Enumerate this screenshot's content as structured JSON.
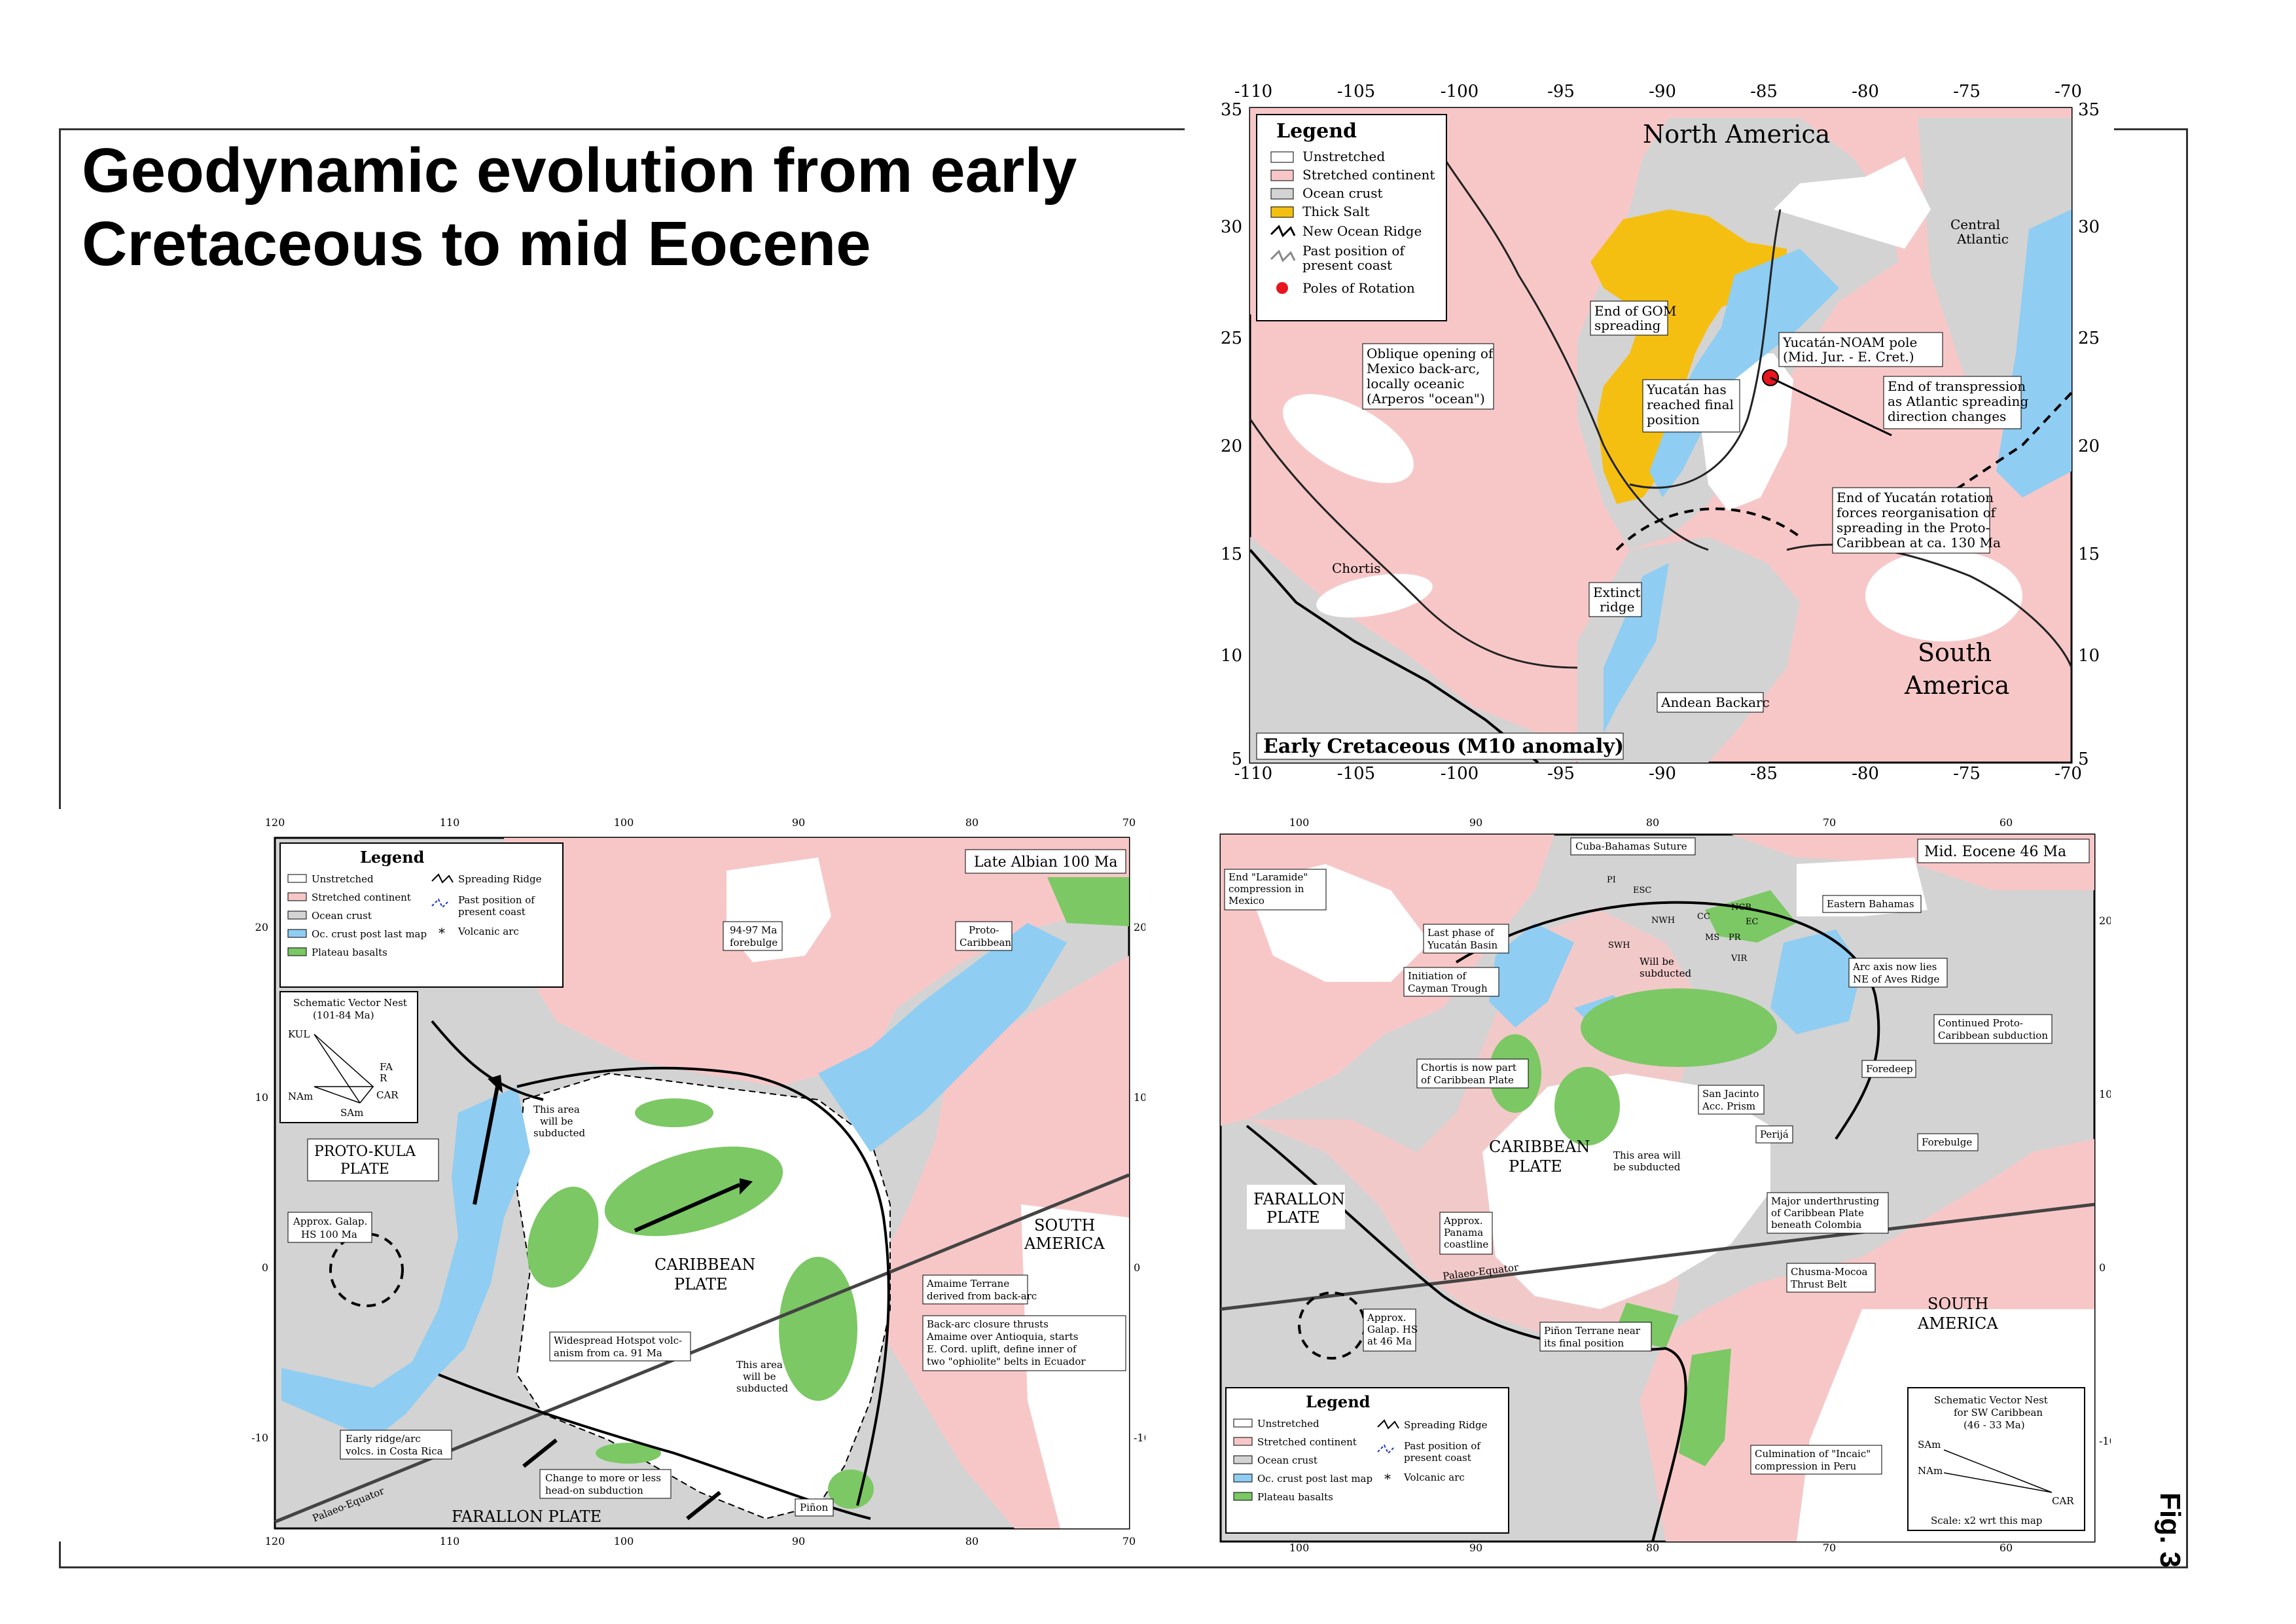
{
  "title": {
    "line1": "Geodynamic evolution from early",
    "line2": "Cretaceous to mid Eocene"
  },
  "fig_label": "Fig. 3",
  "colors": {
    "unstretched": "#ffffff",
    "stretched": "#f7c7c7",
    "ocean": "#d3d3d3",
    "salt": "#f5bf12",
    "oc_crust_new": "#8fcdf2",
    "plateau": "#7cc864",
    "pole": "#e8141e",
    "past_coast": "#1d31c9"
  },
  "map_top": {
    "title": "Early Cretaceous (M10 anomaly)",
    "x_ticks": [
      "-110",
      "-105",
      "-100",
      "-95",
      "-90",
      "-85",
      "-80",
      "-75",
      "-70"
    ],
    "y_ticks": [
      "35",
      "30",
      "25",
      "20",
      "15",
      "10",
      "5"
    ],
    "legend_title": "Legend",
    "legend": [
      {
        "label": "Unstretched",
        "key": "unstretched"
      },
      {
        "label": "Stretched continent",
        "key": "stretched"
      },
      {
        "label": "Ocean crust",
        "key": "ocean"
      },
      {
        "label": "Thick Salt",
        "key": "salt"
      },
      {
        "label": "New Ocean Ridge",
        "key": "ridge"
      },
      {
        "label": "Past position of",
        "key": "coast"
      },
      {
        "label": "present coast",
        "key": "none"
      },
      {
        "label": "Poles of Rotation",
        "key": "pole"
      }
    ],
    "labels": {
      "north_america": "North America",
      "south_america_1": "South",
      "south_america_2": "America",
      "central_atlantic_1": "Central",
      "central_atlantic_2": "Atlantic",
      "chortis": "Chortis",
      "gom_1": "End of GOM",
      "gom_2": "spreading",
      "pole_1": "Yucatán-NOAM pole",
      "pole_2": "(Mid. Jur. - E. Cret.)",
      "oblique_1": "Oblique opening of",
      "oblique_2": "Mexico back-arc,",
      "oblique_3": "locally oceanic",
      "oblique_4": "(Arperos \"ocean\")",
      "yuc_1": "Yucatán has",
      "yuc_2": "reached final",
      "yuc_3": "position",
      "transp_1": "End of transpression",
      "transp_2": "as Atlantic spreading",
      "transp_3": "direction changes",
      "rot_1": "End of Yucatán rotation",
      "rot_2": "forces reorganisation of",
      "rot_3": "spreading in the Proto-",
      "rot_4": "Caribbean at ca. 130 Ma",
      "extinct_1": "Extinct",
      "extinct_2": "ridge",
      "andean": "Andean Backarc"
    }
  },
  "map_left": {
    "title": "Late Albian 100 Ma",
    "x_ticks": [
      "120",
      "110",
      "100",
      "90",
      "80",
      "70"
    ],
    "y_ticks": [
      "20",
      "10",
      "0",
      "-10"
    ],
    "legend_title": "Legend",
    "legend": [
      {
        "label": "Unstretched",
        "key": "unstretched"
      },
      {
        "label": "Stretched continent",
        "key": "stretched"
      },
      {
        "label": "Ocean crust",
        "key": "ocean"
      },
      {
        "label": "Oc. crust post last map",
        "key": "oc_crust_new"
      },
      {
        "label": "Plateau basalts",
        "key": "plateau"
      }
    ],
    "legend2": [
      "Spreading Ridge",
      "Past position of",
      "present coast",
      "Volcanic arc"
    ],
    "vector_nest": {
      "title_1": "Schematic Vector Nest",
      "title_2": "(101-84 Ma)",
      "labels": [
        "KUL",
        "FA",
        "R",
        "CAR",
        "NAm",
        "SAm"
      ]
    },
    "labels": {
      "proto_kula_1": "PROTO-KULA",
      "proto_kula_2": "PLATE",
      "caribbean_1": "CARIBBEAN",
      "caribbean_2": "PLATE",
      "farallon": "FARALLON PLATE",
      "south_america_1": "SOUTH",
      "south_america_2": "AMERICA",
      "palaeo_equator": "Palaeo-Equator",
      "galap_1": "Approx. Galap.",
      "galap_2": "HS 100 Ma",
      "subducted_1": "This area",
      "subducted_2": "will be",
      "subducted_3": "subducted",
      "forebulge_1": "94-97 Ma",
      "forebulge_2": "forebulge",
      "proto_carib_1": "Proto-",
      "proto_carib_2": "Caribbean",
      "amaime_1": "Amaime Terrane",
      "amaime_2": "derived from back-arc",
      "backarc_1": "Back-arc closure thrusts",
      "backarc_2": "Amaime over Antioquia, starts",
      "backarc_3": "E. Cord. uplift, define inner of",
      "backarc_4": "two \"ophiolite\" belts in Ecuador",
      "hotspot_1": "Widespread Hotspot volc-",
      "hotspot_2": "anism from ca. 91 Ma",
      "ridge_arc_1": "Early ridge/arc",
      "ridge_arc_2": "volcs. in Costa Rica",
      "headon_1": "Change to more or less",
      "headon_2": "head-on subduction",
      "pinon": "Piñon"
    }
  },
  "map_right": {
    "title": "Mid. Eocene 46 Ma",
    "x_ticks": [
      "100",
      "90",
      "80",
      "70",
      "60"
    ],
    "y_ticks": [
      "20",
      "10",
      "0",
      "-10"
    ],
    "legend_title": "Legend",
    "legend": [
      {
        "label": "Unstretched",
        "key": "unstretched"
      },
      {
        "label": "Stretched continent",
        "key": "stretched"
      },
      {
        "label": "Ocean crust",
        "key": "ocean"
      },
      {
        "label": "Oc. crust post last map",
        "key": "oc_crust_new"
      },
      {
        "label": "Plateau basalts",
        "key": "plateau"
      }
    ],
    "legend2": [
      "Spreading Ridge",
      "Past position of",
      "present coast",
      "Volcanic arc"
    ],
    "vector_nest": {
      "title_1": "Schematic Vector Nest",
      "title_2": "for SW Caribbean",
      "title_3": "(46 - 33 Ma)",
      "labels": [
        "SAm",
        "NAm",
        "CAR"
      ],
      "scale": "Scale: x2 wrt this map"
    },
    "labels": {
      "caribbean_1": "CARIBBEAN",
      "caribbean_2": "PLATE",
      "farallon_1": "FARALLON",
      "farallon_2": "PLATE",
      "south_america_1": "SOUTH",
      "south_america_2": "AMERICA",
      "palaeo_equator": "Palaeo-Equator",
      "laramide_1": "End \"Laramide\"",
      "laramide_2": "compression in",
      "laramide_3": "Mexico",
      "cuba": "Cuba-Bahamas Suture",
      "eastern_bahamas": "Eastern Bahamas",
      "yucatan_1": "Last phase of",
      "yucatan_2": "Yucatán Basin",
      "cayman_1": "Initiation of",
      "cayman_2": "Cayman Trough",
      "chortis_1": "Chortis is now part",
      "chortis_2": "of Caribbean Plate",
      "subducted_1": "This area will",
      "subducted_2": "be subducted",
      "subducted_3": "Will be",
      "subducted_4": "subducted",
      "aves_1": "Arc axis now lies",
      "aves_2": "NE of Aves Ridge",
      "proto_1": "Continued Proto-",
      "proto_2": "Caribbean subduction",
      "foredeep": "Foredeep",
      "forebulge": "Forebulge",
      "sanjacinto_1": "San Jacinto",
      "sanjacinto_2": "Acc. Prism",
      "perija": "Perijá",
      "panama_1": "Approx.",
      "panama_2": "Panama",
      "panama_3": "coastline",
      "under_1": "Major underthrusting",
      "under_2": "of Caribbean Plate",
      "under_3": "beneath Colombia",
      "chusma_1": "Chusma-Mocoa",
      "chusma_2": "Thrust Belt",
      "galap_1": "Approx.",
      "galap_2": "Galap. HS",
      "galap_3": "at 46 Ma",
      "pinon_1": "Piñon Terrane near",
      "pinon_2": "its final position",
      "incaic_1": "Culmination of \"Incaic\"",
      "incaic_2": "compression in Peru",
      "blocks": [
        "PI",
        "ESC",
        "NWH",
        "CC",
        "NCB",
        "EC",
        "SWH",
        "MS",
        "PR",
        "VIR"
      ]
    }
  }
}
